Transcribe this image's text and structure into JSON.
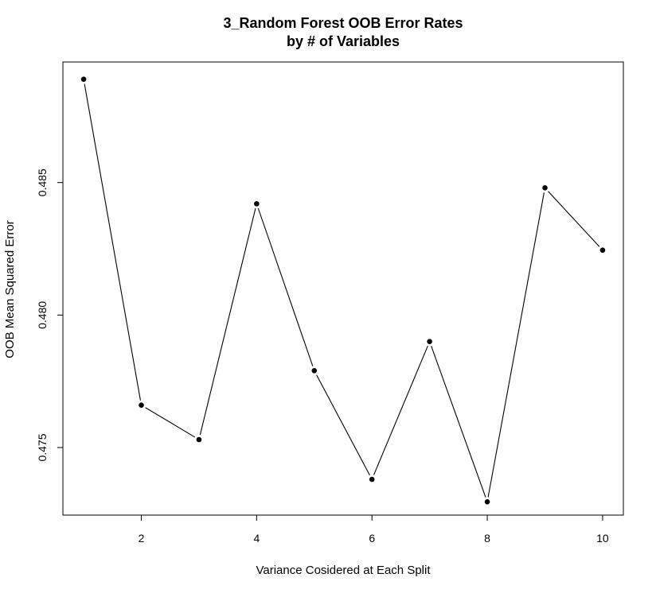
{
  "chart_data": {
    "type": "line",
    "title_line1": "3_Random Forest OOB Error Rates",
    "title_line2": "by # of Variables",
    "xlabel": "Variance Cosidered at Each Split",
    "ylabel": "OOB Mean Squared Error",
    "x": [
      1,
      2,
      3,
      4,
      5,
      6,
      7,
      8,
      9,
      10
    ],
    "y": [
      0.4889,
      0.4766,
      0.4753,
      0.4842,
      0.4779,
      0.4738,
      0.479,
      0.47295,
      0.4848,
      0.48245
    ],
    "xlim": [
      0.64,
      10.36
    ],
    "ylim": [
      0.47245,
      0.48955
    ],
    "xticks": [
      2,
      4,
      6,
      8,
      10
    ],
    "xtick_labels": [
      "2",
      "4",
      "6",
      "8",
      "10"
    ],
    "yticks": [
      0.475,
      0.48,
      0.485
    ],
    "ytick_labels": [
      "0.475",
      "0.480",
      "0.485"
    ],
    "grid": false,
    "style": {
      "line_color": "#000000",
      "point_color": "#000000",
      "point_outline": "#ffffff"
    }
  }
}
